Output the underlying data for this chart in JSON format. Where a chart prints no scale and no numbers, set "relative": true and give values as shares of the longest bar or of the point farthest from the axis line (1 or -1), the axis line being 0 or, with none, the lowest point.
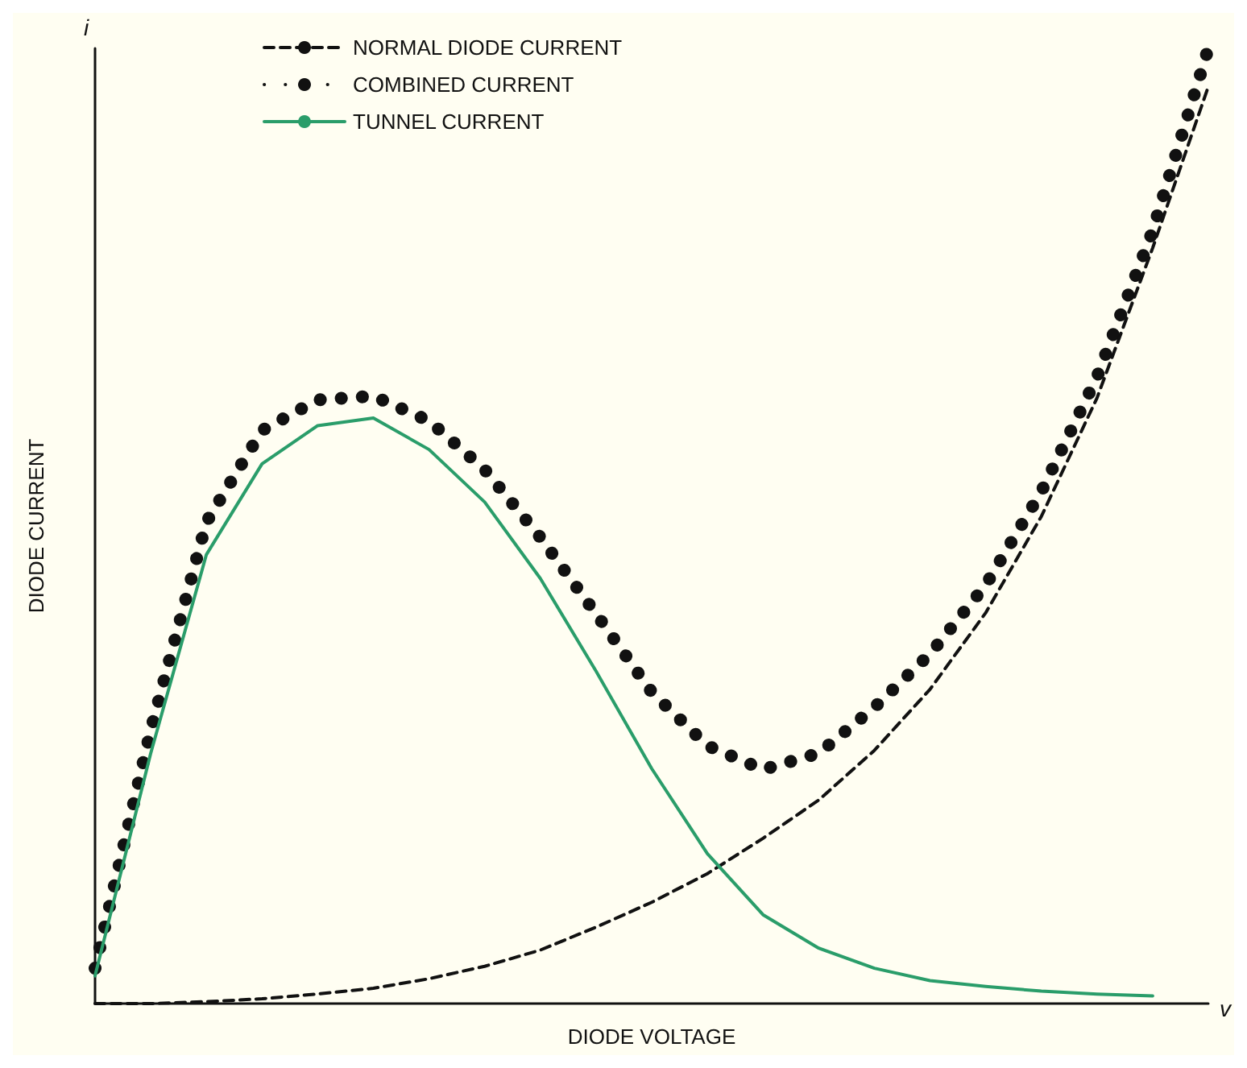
{
  "chart_data": {
    "type": "line",
    "relative": true,
    "xlabel": "DIODE VOLTAGE",
    "ylabel": "DIODE CURRENT",
    "annotations": [
      "i",
      "v"
    ],
    "tick_labels": false,
    "grid": false,
    "legend": "top left",
    "marker": "none",
    "categories": [
      null,
      null,
      null,
      null,
      null,
      null,
      null,
      null,
      null,
      null,
      null,
      null,
      null,
      null,
      null,
      null,
      null,
      null,
      null,
      null,
      null
    ],
    "series": [
      {
        "name": "NORMAL DIODE CURRENT",
        "color": "#111111",
        "line_style": "dashed",
        "values": [
          0,
          0,
          0.002,
          0.005,
          0.01,
          0.016,
          0.026,
          0.039,
          0.056,
          0.08,
          0.106,
          0.136,
          0.173,
          0.213,
          0.265,
          0.329,
          0.409,
          0.51,
          0.634,
          0.791,
          0.96
        ]
      },
      {
        "name": "COMBINED CURRENT",
        "color": "#111111",
        "line_style": "dotted",
        "values": [
          0.037,
          0.286,
          0.504,
          0.6,
          0.632,
          0.636,
          0.61,
          0.559,
          0.488,
          0.408,
          0.326,
          0.27,
          0.245,
          0.262,
          0.31,
          0.366,
          0.438,
          0.536,
          0.656,
          0.809,
          1
        ]
      },
      {
        "name": "TUNNEL CURRENT",
        "color": "#2a9d6a",
        "line_style": "solid",
        "values": [
          0.029,
          0.262,
          0.47,
          0.565,
          0.605,
          0.613,
          0.58,
          0.525,
          0.445,
          0.348,
          0.246,
          0.157,
          0.093,
          0.058,
          0.037,
          0.024,
          0.018,
          0.013,
          0.01,
          0.008,
          null
        ]
      }
    ]
  }
}
